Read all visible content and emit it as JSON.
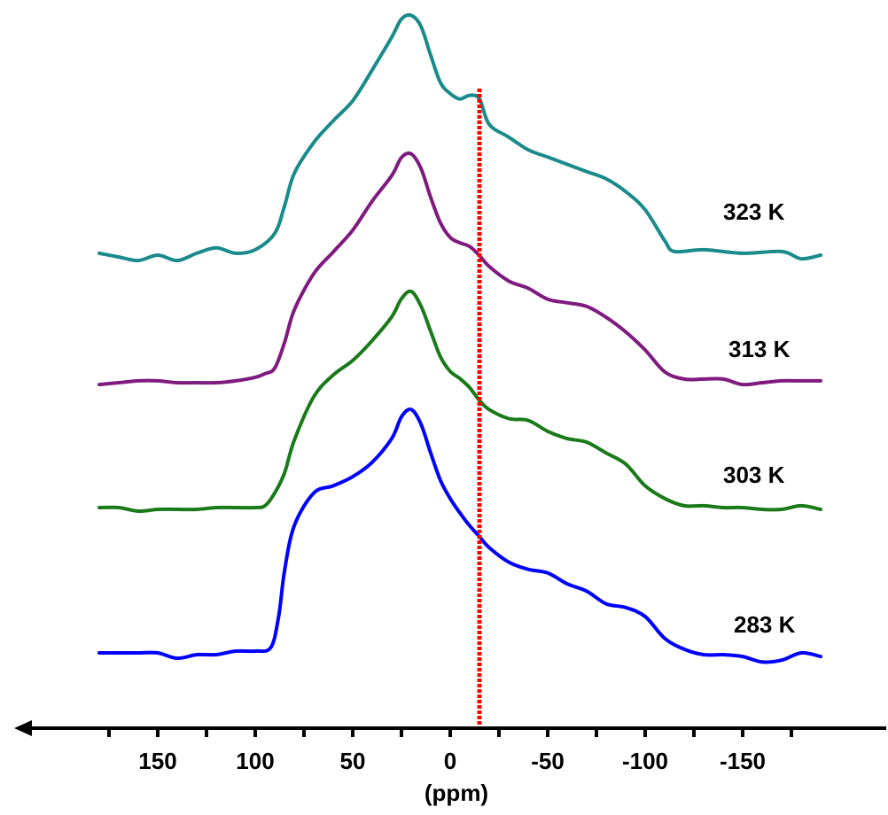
{
  "chart_data": {
    "type": "line",
    "xlabel": "(ppm)",
    "ylabel": "",
    "title": "",
    "xlim": [
      186,
      -192
    ],
    "x_reversed": true,
    "x_ticks": [
      150,
      100,
      50,
      0,
      -50,
      -100,
      -150
    ],
    "x_tick_labels": [
      "150",
      "100",
      "50",
      "0",
      "-50",
      "-100",
      "-150"
    ],
    "grid": false,
    "reference_line": {
      "x": -15,
      "color": "#ff0000",
      "style": "dotted"
    },
    "series": [
      {
        "name": "323 K",
        "color": "#1a8a8a",
        "points": [
          [
            180,
            0.01
          ],
          [
            170,
            -0.01
          ],
          [
            160,
            -0.03
          ],
          [
            150,
            0.0
          ],
          [
            140,
            -0.03
          ],
          [
            130,
            0.01
          ],
          [
            120,
            0.04
          ],
          [
            110,
            0.01
          ],
          [
            100,
            0.03
          ],
          [
            90,
            0.12
          ],
          [
            85,
            0.27
          ],
          [
            80,
            0.45
          ],
          [
            70,
            0.62
          ],
          [
            60,
            0.74
          ],
          [
            50,
            0.85
          ],
          [
            40,
            1.02
          ],
          [
            30,
            1.2
          ],
          [
            25,
            1.3
          ],
          [
            20,
            1.32
          ],
          [
            15,
            1.26
          ],
          [
            10,
            1.1
          ],
          [
            5,
            0.95
          ],
          [
            0,
            0.89
          ],
          [
            -5,
            0.86
          ],
          [
            -10,
            0.88
          ],
          [
            -15,
            0.86
          ],
          [
            -20,
            0.72
          ],
          [
            -30,
            0.65
          ],
          [
            -40,
            0.58
          ],
          [
            -50,
            0.54
          ],
          [
            -60,
            0.5
          ],
          [
            -70,
            0.46
          ],
          [
            -80,
            0.42
          ],
          [
            -90,
            0.35
          ],
          [
            -100,
            0.25
          ],
          [
            -110,
            0.08
          ],
          [
            -115,
            0.02
          ],
          [
            -130,
            0.03
          ],
          [
            -150,
            0.01
          ],
          [
            -170,
            0.02
          ],
          [
            -180,
            -0.02
          ],
          [
            -190,
            0.0
          ]
        ]
      },
      {
        "name": "313 K",
        "color": "#7f1a7f",
        "points": [
          [
            180,
            -0.01
          ],
          [
            170,
            0.0
          ],
          [
            160,
            0.01
          ],
          [
            150,
            0.01
          ],
          [
            140,
            0.0
          ],
          [
            130,
            0.0
          ],
          [
            120,
            0.0
          ],
          [
            110,
            0.01
          ],
          [
            100,
            0.03
          ],
          [
            95,
            0.05
          ],
          [
            90,
            0.08
          ],
          [
            85,
            0.22
          ],
          [
            80,
            0.4
          ],
          [
            70,
            0.6
          ],
          [
            60,
            0.72
          ],
          [
            50,
            0.84
          ],
          [
            40,
            1.0
          ],
          [
            30,
            1.14
          ],
          [
            25,
            1.24
          ],
          [
            20,
            1.26
          ],
          [
            15,
            1.18
          ],
          [
            10,
            1.02
          ],
          [
            5,
            0.88
          ],
          [
            0,
            0.8
          ],
          [
            -5,
            0.77
          ],
          [
            -10,
            0.75
          ],
          [
            -15,
            0.7
          ],
          [
            -20,
            0.64
          ],
          [
            -30,
            0.56
          ],
          [
            -40,
            0.52
          ],
          [
            -50,
            0.46
          ],
          [
            -60,
            0.44
          ],
          [
            -70,
            0.42
          ],
          [
            -80,
            0.36
          ],
          [
            -90,
            0.28
          ],
          [
            -100,
            0.18
          ],
          [
            -110,
            0.06
          ],
          [
            -120,
            0.02
          ],
          [
            -130,
            0.02
          ],
          [
            -140,
            0.02
          ],
          [
            -150,
            -0.01
          ],
          [
            -160,
            0.0
          ],
          [
            -170,
            0.01
          ],
          [
            -180,
            0.01
          ],
          [
            -190,
            0.01
          ]
        ]
      },
      {
        "name": "303 K",
        "color": "#1a7a1a",
        "points": [
          [
            180,
            0.01
          ],
          [
            170,
            0.01
          ],
          [
            160,
            -0.01
          ],
          [
            150,
            0.0
          ],
          [
            140,
            0.0
          ],
          [
            130,
            0.0
          ],
          [
            120,
            0.01
          ],
          [
            110,
            0.01
          ],
          [
            100,
            0.01
          ],
          [
            95,
            0.02
          ],
          [
            90,
            0.09
          ],
          [
            85,
            0.2
          ],
          [
            80,
            0.38
          ],
          [
            70,
            0.62
          ],
          [
            60,
            0.74
          ],
          [
            50,
            0.82
          ],
          [
            40,
            0.93
          ],
          [
            30,
            1.06
          ],
          [
            25,
            1.16
          ],
          [
            20,
            1.2
          ],
          [
            15,
            1.12
          ],
          [
            10,
            0.98
          ],
          [
            5,
            0.84
          ],
          [
            0,
            0.76
          ],
          [
            -5,
            0.72
          ],
          [
            -10,
            0.67
          ],
          [
            -15,
            0.6
          ],
          [
            -20,
            0.55
          ],
          [
            -30,
            0.5
          ],
          [
            -40,
            0.49
          ],
          [
            -50,
            0.43
          ],
          [
            -60,
            0.39
          ],
          [
            -70,
            0.37
          ],
          [
            -80,
            0.31
          ],
          [
            -90,
            0.25
          ],
          [
            -100,
            0.13
          ],
          [
            -110,
            0.06
          ],
          [
            -120,
            0.02
          ],
          [
            -130,
            0.02
          ],
          [
            -140,
            0.01
          ],
          [
            -150,
            0.01
          ],
          [
            -160,
            0.0
          ],
          [
            -170,
            0.0
          ],
          [
            -180,
            0.02
          ],
          [
            -190,
            0.0
          ]
        ]
      },
      {
        "name": "283 K",
        "color": "#0000ff",
        "points": [
          [
            180,
            0.0
          ],
          [
            170,
            0.0
          ],
          [
            160,
            0.0
          ],
          [
            150,
            0.0
          ],
          [
            140,
            -0.03
          ],
          [
            130,
            -0.01
          ],
          [
            120,
            -0.01
          ],
          [
            110,
            0.01
          ],
          [
            100,
            0.01
          ],
          [
            92,
            0.03
          ],
          [
            88,
            0.2
          ],
          [
            85,
            0.45
          ],
          [
            80,
            0.7
          ],
          [
            70,
            0.88
          ],
          [
            60,
            0.92
          ],
          [
            50,
            0.97
          ],
          [
            40,
            1.05
          ],
          [
            30,
            1.18
          ],
          [
            25,
            1.3
          ],
          [
            20,
            1.34
          ],
          [
            15,
            1.26
          ],
          [
            10,
            1.1
          ],
          [
            5,
            0.95
          ],
          [
            0,
            0.85
          ],
          [
            -5,
            0.77
          ],
          [
            -10,
            0.7
          ],
          [
            -15,
            0.64
          ],
          [
            -20,
            0.58
          ],
          [
            -30,
            0.5
          ],
          [
            -40,
            0.46
          ],
          [
            -50,
            0.44
          ],
          [
            -60,
            0.38
          ],
          [
            -70,
            0.34
          ],
          [
            -80,
            0.27
          ],
          [
            -90,
            0.25
          ],
          [
            -100,
            0.2
          ],
          [
            -110,
            0.08
          ],
          [
            -120,
            0.02
          ],
          [
            -130,
            -0.01
          ],
          [
            -140,
            -0.01
          ],
          [
            -150,
            -0.02
          ],
          [
            -160,
            -0.05
          ],
          [
            -170,
            -0.04
          ],
          [
            -180,
            0.0
          ],
          [
            -190,
            -0.02
          ]
        ]
      }
    ]
  }
}
